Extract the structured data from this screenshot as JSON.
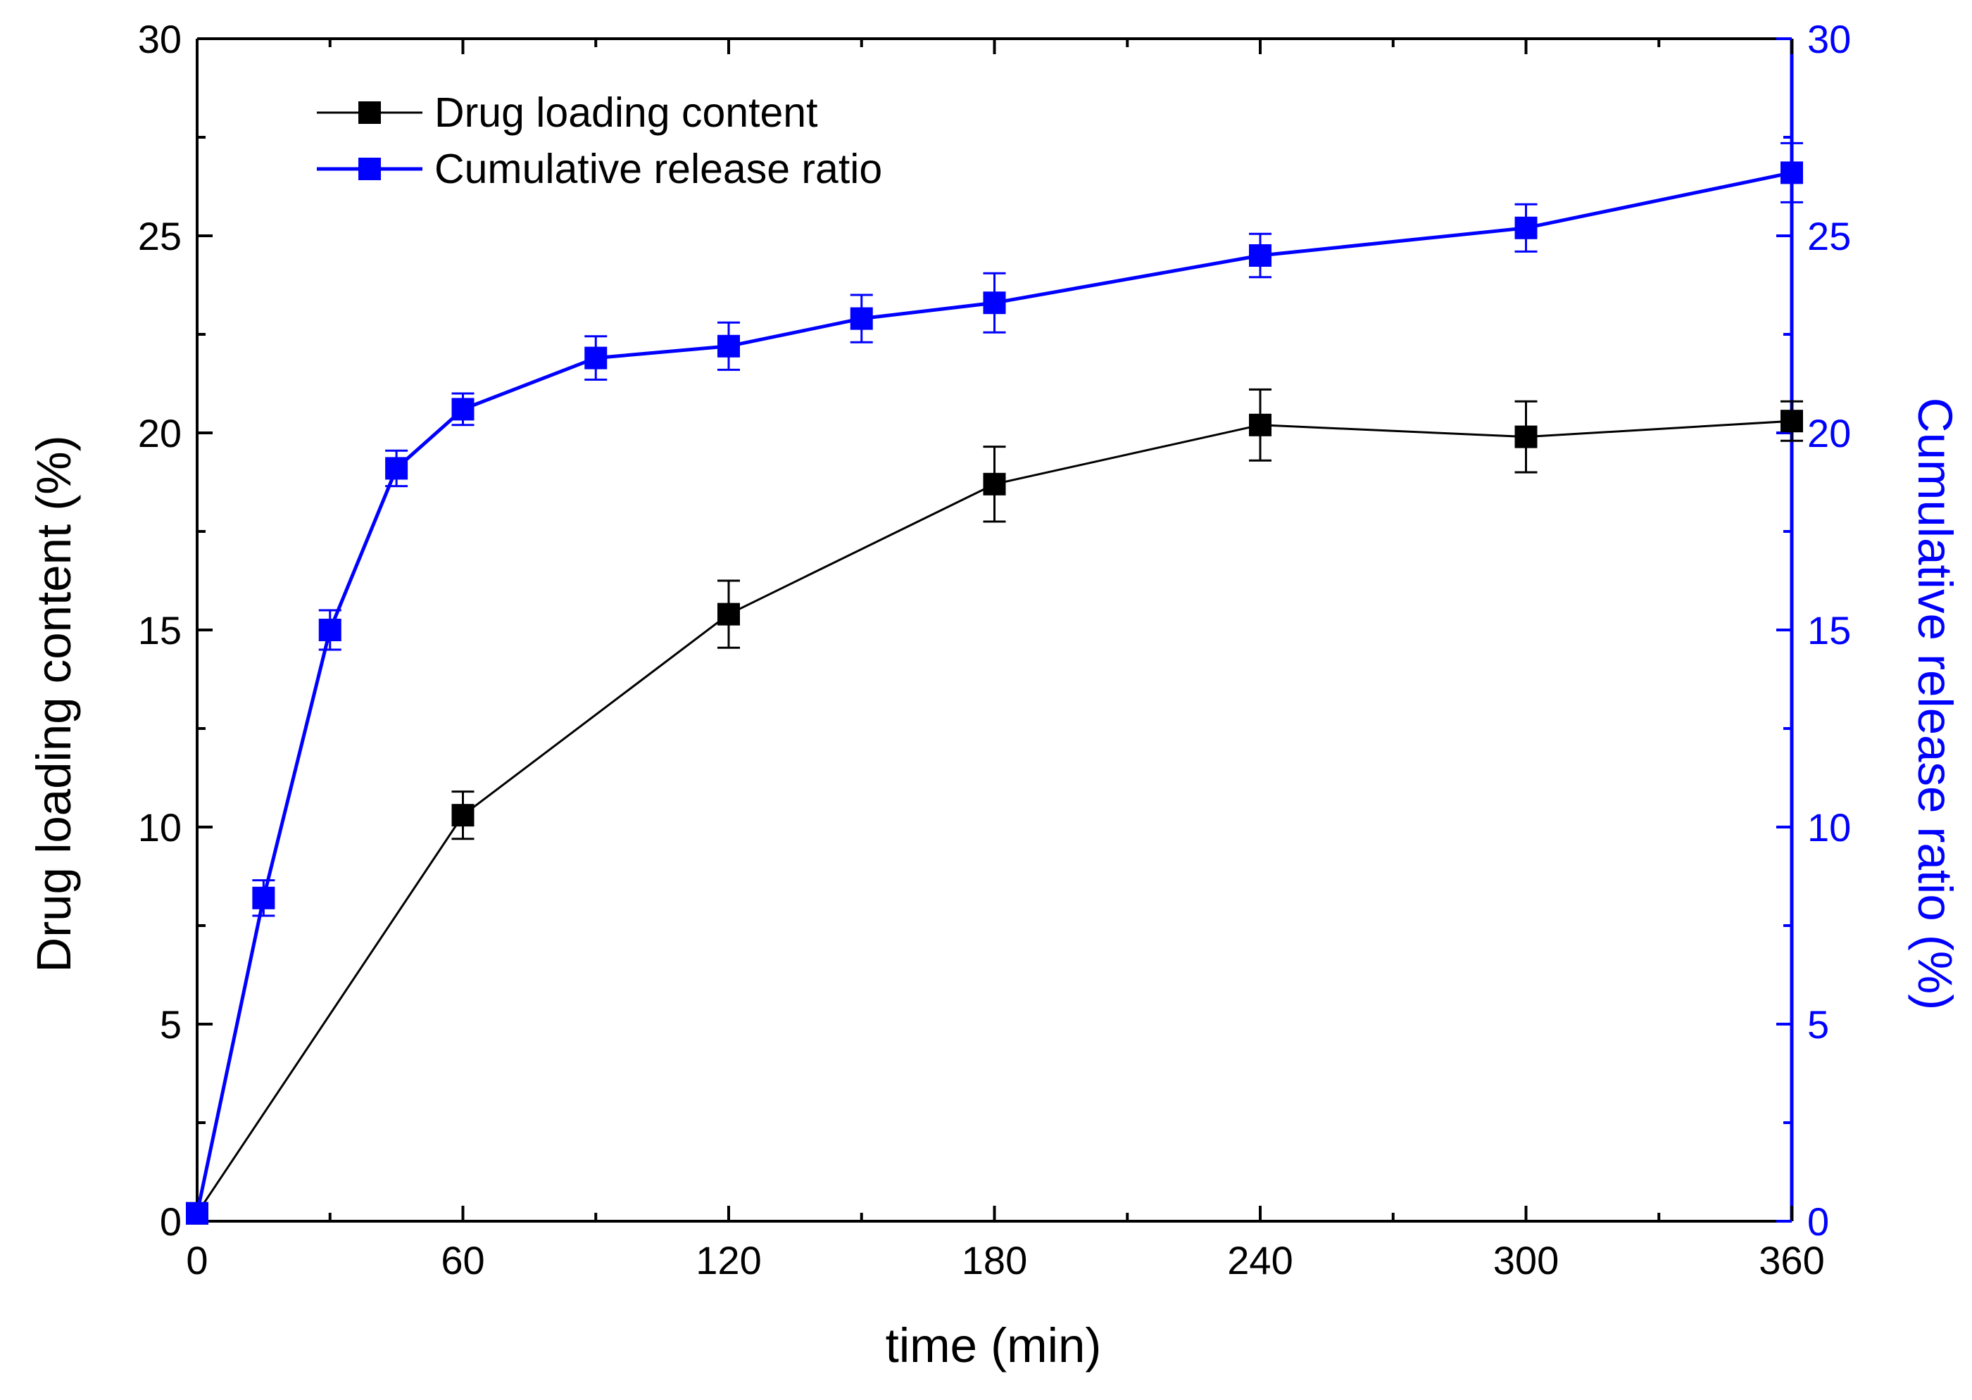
{
  "chart_data": {
    "type": "line",
    "title": "",
    "xlabel": "time (min)",
    "ylabel_left": "Drug loading content (%)",
    "ylabel_right": "Cumulative release ratio (%)",
    "xlim": [
      0,
      360
    ],
    "ylim_left": [
      0,
      30
    ],
    "ylim_right": [
      0,
      30
    ],
    "x_ticks": [
      0,
      60,
      120,
      180,
      240,
      300,
      360
    ],
    "x_tick_labels": [
      "0",
      "60",
      "120",
      "180",
      "240",
      "300",
      "360"
    ],
    "y_ticks": [
      0,
      5,
      10,
      15,
      20,
      25,
      30
    ],
    "y_tick_labels": [
      "0",
      "5",
      "10",
      "15",
      "20",
      "25",
      "30"
    ],
    "grid": false,
    "legend_position": "top-left",
    "series": [
      {
        "name": "Drug loading content",
        "axis": "left",
        "color": "#000000",
        "x": [
          0,
          60,
          120,
          180,
          240,
          300,
          360
        ],
        "y": [
          0.2,
          10.3,
          15.4,
          18.7,
          20.2,
          19.9,
          20.3
        ],
        "err": [
          0,
          0.6,
          0.85,
          0.95,
          0.9,
          0.9,
          0.5
        ]
      },
      {
        "name": "Cumulative release ratio",
        "axis": "right",
        "color": "#0000ff",
        "x": [
          0,
          15,
          30,
          45,
          60,
          90,
          120,
          150,
          180,
          240,
          300,
          360
        ],
        "y": [
          0.2,
          8.2,
          15.0,
          19.1,
          20.6,
          21.9,
          22.2,
          22.9,
          23.3,
          24.5,
          25.2,
          26.6
        ],
        "err": [
          0,
          0.45,
          0.5,
          0.45,
          0.4,
          0.55,
          0.6,
          0.6,
          0.75,
          0.55,
          0.6,
          0.75
        ]
      }
    ]
  }
}
